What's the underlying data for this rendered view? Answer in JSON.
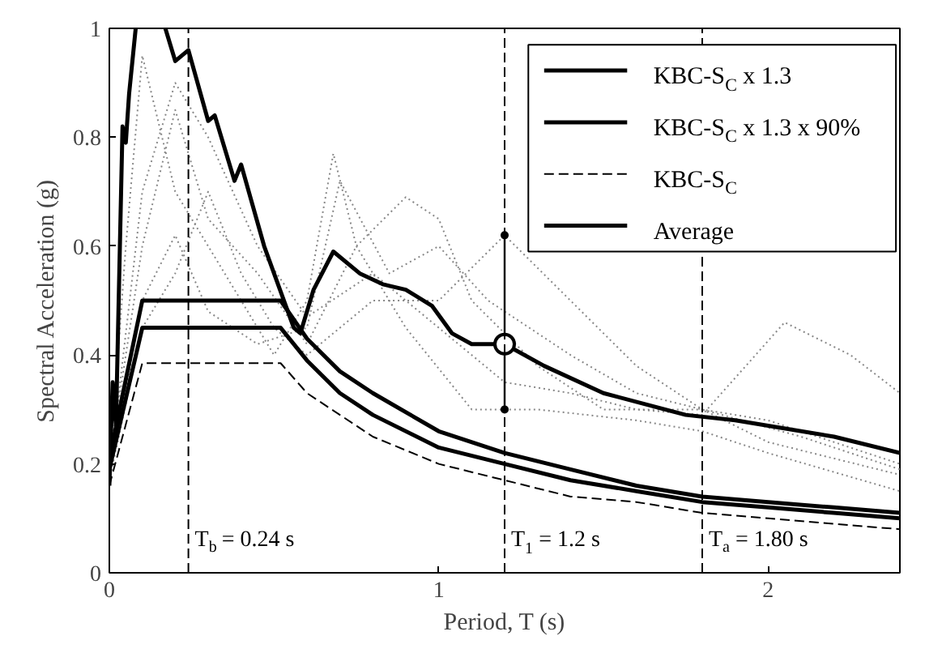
{
  "chart_data": {
    "type": "line",
    "xlabel": "Period, T (s)",
    "ylabel": "Spectral Acceleration (g)",
    "xlim": [
      0,
      2.4
    ],
    "ylim": [
      0,
      1
    ],
    "xticks": [
      0,
      1,
      2
    ],
    "yticks": [
      0,
      0.2,
      0.4,
      0.6,
      0.8,
      1
    ],
    "grid": false,
    "legend": "top right",
    "marker": "none",
    "series": [
      {
        "x": [
          0,
          0.05,
          0.1,
          0.2,
          0.3,
          0.4,
          0.5,
          0.6,
          0.68,
          0.75,
          0.9,
          1.1,
          1.3,
          1.6,
          1.8,
          2.0,
          2.4
        ],
        "values": [
          0.18,
          0.6,
          0.95,
          0.7,
          0.6,
          0.5,
          0.4,
          0.5,
          0.77,
          0.6,
          0.45,
          0.3,
          0.3,
          0.28,
          0.26,
          0.22,
          0.15
        ],
        "color": "#888888",
        "line_style": "dotted"
      },
      {
        "x": [
          0,
          0.1,
          0.2,
          0.3,
          0.4,
          0.5,
          0.6,
          0.8,
          1.0,
          1.2,
          1.4,
          1.6,
          1.8,
          2.0,
          2.4
        ],
        "values": [
          0.17,
          0.45,
          0.55,
          0.7,
          0.55,
          0.45,
          0.4,
          0.5,
          0.5,
          0.62,
          0.5,
          0.38,
          0.3,
          0.24,
          0.18
        ],
        "color": "#888888",
        "line_style": "dotted"
      },
      {
        "x": [
          0,
          0.1,
          0.2,
          0.3,
          0.45,
          0.6,
          0.75,
          0.9,
          1.0,
          1.1,
          1.3,
          1.5,
          1.8,
          2.0,
          2.4
        ],
        "values": [
          0.2,
          0.6,
          0.85,
          0.65,
          0.55,
          0.42,
          0.6,
          0.69,
          0.65,
          0.5,
          0.38,
          0.3,
          0.3,
          0.28,
          0.2
        ],
        "color": "#888888",
        "line_style": "dotted"
      },
      {
        "x": [
          0,
          0.1,
          0.2,
          0.3,
          0.45,
          0.6,
          0.8,
          1.0,
          1.2,
          1.4,
          1.6,
          1.8,
          2.05,
          2.25,
          2.4
        ],
        "values": [
          0.18,
          0.7,
          0.9,
          0.8,
          0.6,
          0.47,
          0.55,
          0.45,
          0.35,
          0.33,
          0.3,
          0.29,
          0.46,
          0.4,
          0.33
        ],
        "color": "#888888",
        "line_style": "dotted"
      },
      {
        "x": [
          0,
          0.1,
          0.2,
          0.3,
          0.45,
          0.6,
          0.7,
          0.85,
          1.0,
          1.15,
          1.4,
          1.6,
          1.8,
          2.1,
          2.4
        ],
        "values": [
          0.17,
          0.5,
          0.62,
          0.48,
          0.42,
          0.45,
          0.72,
          0.55,
          0.6,
          0.5,
          0.4,
          0.33,
          0.3,
          0.25,
          0.19
        ],
        "color": "#888888",
        "line_style": "dotted"
      },
      {
        "name": "KBC-S$_{C}$ x 1.3",
        "x": [
          0,
          0.1,
          0.52,
          0.6,
          0.7,
          0.8,
          1.0,
          1.2,
          1.4,
          1.6,
          1.8,
          2.0,
          2.2,
          2.4
        ],
        "values": [
          0.21,
          0.5,
          0.5,
          0.43,
          0.37,
          0.33,
          0.26,
          0.22,
          0.19,
          0.16,
          0.14,
          0.13,
          0.12,
          0.11
        ],
        "color": "#000000",
        "line_style": "solid"
      },
      {
        "name": "KBC-S$_{C}$ x 1.3 x 90%",
        "x": [
          0,
          0.1,
          0.52,
          0.6,
          0.7,
          0.8,
          1.0,
          1.2,
          1.4,
          1.6,
          1.8,
          2.0,
          2.2,
          2.4
        ],
        "values": [
          0.19,
          0.45,
          0.45,
          0.39,
          0.33,
          0.29,
          0.23,
          0.2,
          0.17,
          0.15,
          0.13,
          0.12,
          0.11,
          0.1
        ],
        "color": "#000000",
        "line_style": "solid"
      },
      {
        "name": "KBC-S$_{C}$",
        "x": [
          0,
          0.1,
          0.52,
          0.6,
          0.7,
          0.8,
          1.0,
          1.2,
          1.4,
          1.6,
          1.8,
          2.0,
          2.2,
          2.4
        ],
        "values": [
          0.16,
          0.385,
          0.385,
          0.33,
          0.29,
          0.25,
          0.2,
          0.17,
          0.14,
          0.13,
          0.11,
          0.1,
          0.09,
          0.08
        ],
        "color": "#000000",
        "line_style": "dashed"
      },
      {
        "name": "Average",
        "x": [
          0,
          0.01,
          0.02,
          0.04,
          0.05,
          0.06,
          0.08,
          0.12,
          0.17,
          0.2,
          0.24,
          0.3,
          0.32,
          0.38,
          0.4,
          0.47,
          0.56,
          0.58,
          0.62,
          0.68,
          0.76,
          0.83,
          0.9,
          0.98,
          1.04,
          1.1,
          1.2,
          1.32,
          1.5,
          1.75,
          1.9,
          2.2,
          2.4
        ],
        "values": [
          0.16,
          0.35,
          0.27,
          0.82,
          0.79,
          0.88,
          1.0,
          null,
          1.0,
          0.94,
          0.96,
          0.83,
          0.84,
          0.72,
          0.75,
          0.6,
          0.45,
          0.44,
          0.52,
          0.59,
          0.55,
          0.53,
          0.52,
          0.49,
          0.44,
          0.42,
          0.42,
          0.38,
          0.33,
          0.29,
          0.28,
          0.25,
          0.22
        ],
        "color": "#000000",
        "line_style": "solid"
      },
      {
        "type": "scatter",
        "x": [
          1.2
        ],
        "values": [
          0.42
        ],
        "errors": [
          [
            0.3,
            0.62
          ]
        ],
        "color": "#000000",
        "marker": "circle"
      }
    ],
    "ref_lines": [
      {
        "axis": "x",
        "value": 0.24,
        "label": "T$_{b}$ = 0.24 s",
        "line_style": "dashed",
        "color": "#000000"
      },
      {
        "axis": "x",
        "value": 1.2,
        "label": "T$_{1}$ = 1.2 s",
        "line_style": "dashed",
        "color": "#000000"
      },
      {
        "axis": "x",
        "value": 1.8,
        "label": "T$_{a}$ = 1.80 s",
        "line_style": "dashed",
        "color": "#000000"
      }
    ]
  }
}
